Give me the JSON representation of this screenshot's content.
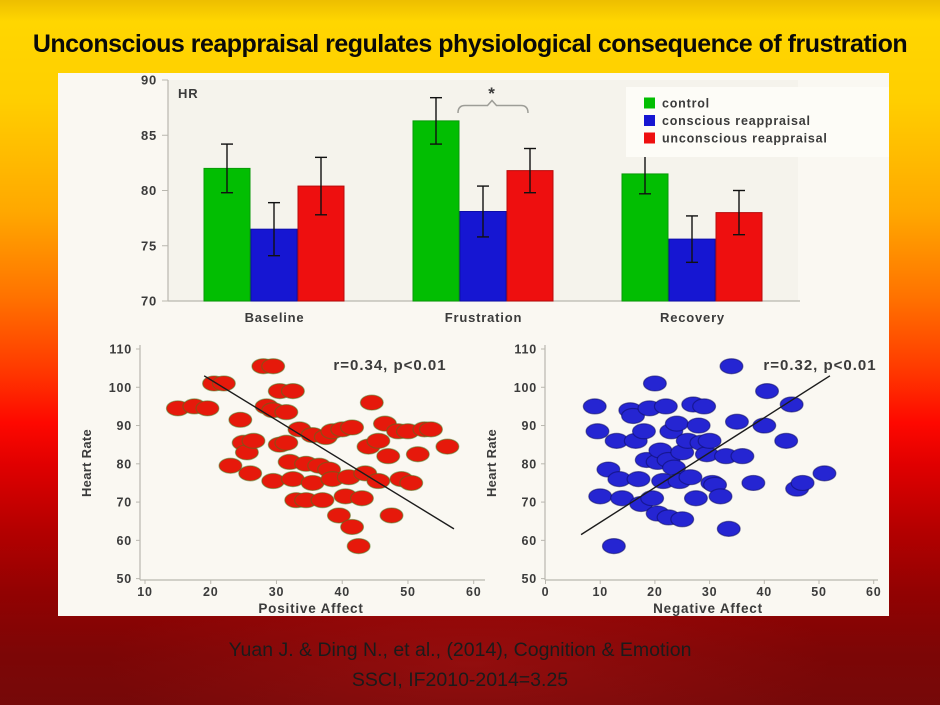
{
  "slide": {
    "title": "Unconscious reappraisal regulates physiological consequence of frustration",
    "citation": [
      "Yuan J. & Ding N., et al., (2014), Cognition & Emotion",
      "SSCI, IF2010-2014=3.25"
    ]
  },
  "colors": {
    "control_green": "#02be02",
    "conscious_blue": "#1616d2",
    "unconscious_red": "#ee0f0f",
    "scatter_red": "#e6190b",
    "scatter_blue": "#2525d2",
    "bg_top_yellow": "#ffd600",
    "bg_bottom_red": "#760909",
    "panel_white": "#faf8f2"
  },
  "chart_data": [
    {
      "type": "bar",
      "title": "HR",
      "categories": [
        "Baseline",
        "Frustration",
        "Recovery"
      ],
      "series": [
        {
          "name": "control",
          "color": "#02be02",
          "edge": "#089a08",
          "values": [
            82.0,
            86.3,
            81.5
          ],
          "errors": [
            2.2,
            2.1,
            1.8
          ]
        },
        {
          "name": "conscious reappraisal",
          "color": "#1616d2",
          "edge": "#0d0da8",
          "values": [
            76.5,
            78.1,
            75.6
          ],
          "errors": [
            2.4,
            2.3,
            2.1
          ]
        },
        {
          "name": "unconscious reappraisal",
          "color": "#ee0f0f",
          "edge": "#b80b0b",
          "values": [
            80.4,
            81.8,
            78.0
          ],
          "errors": [
            2.6,
            2.0,
            2.0
          ]
        }
      ],
      "ylim": [
        70,
        90
      ],
      "yticks": [
        70,
        75,
        80,
        85,
        90
      ],
      "grid": false,
      "legend_position": "top-right",
      "significance": {
        "label": "*",
        "category": "Frustration",
        "between": [
          "conscious reappraisal",
          "unconscious reappraisal"
        ]
      }
    },
    {
      "type": "scatter",
      "xlabel": "Positive Affect",
      "ylabel": "Heart Rate",
      "annotation": "r=0.34, p<0.01",
      "xlim": [
        10,
        60
      ],
      "ylim": [
        50,
        110
      ],
      "xticks": [
        10,
        20,
        30,
        40,
        50,
        60
      ],
      "yticks": [
        50,
        60,
        70,
        80,
        90,
        100,
        110
      ],
      "marker_color": "#e6190b",
      "trend_line": [
        [
          19,
          103
        ],
        [
          57,
          63
        ]
      ],
      "points": [
        [
          15,
          94.5
        ],
        [
          17.5,
          95
        ],
        [
          19.5,
          94.5
        ],
        [
          20.5,
          101
        ],
        [
          22,
          101
        ],
        [
          23,
          79.5
        ],
        [
          24.5,
          91.5
        ],
        [
          25,
          85.5
        ],
        [
          25.5,
          83
        ],
        [
          26.5,
          86
        ],
        [
          26,
          77.5
        ],
        [
          28,
          105.5
        ],
        [
          29.5,
          105.5
        ],
        [
          28.5,
          95
        ],
        [
          29.5,
          94
        ],
        [
          30.5,
          99
        ],
        [
          31.5,
          93.5
        ],
        [
          32.5,
          99
        ],
        [
          29.5,
          75.5
        ],
        [
          30.5,
          85
        ],
        [
          31.5,
          85.5
        ],
        [
          32,
          80.5
        ],
        [
          32.5,
          76
        ],
        [
          33,
          70.5
        ],
        [
          33.5,
          89
        ],
        [
          34.5,
          80
        ],
        [
          34.5,
          70.5
        ],
        [
          35.5,
          87.5
        ],
        [
          35.5,
          75
        ],
        [
          36.5,
          79.5
        ],
        [
          37,
          70.5
        ],
        [
          37.5,
          87
        ],
        [
          38,
          78.5
        ],
        [
          38.5,
          76
        ],
        [
          38.5,
          88.5
        ],
        [
          39.5,
          66.5
        ],
        [
          40,
          89
        ],
        [
          40.5,
          71.5
        ],
        [
          41,
          76.5
        ],
        [
          41.5,
          89.5
        ],
        [
          41.5,
          63.5
        ],
        [
          42.5,
          58.5
        ],
        [
          43,
          71
        ],
        [
          43.5,
          77.5
        ],
        [
          44,
          84.5
        ],
        [
          44.5,
          96
        ],
        [
          45.5,
          86
        ],
        [
          45.5,
          75.5
        ],
        [
          46.5,
          90.5
        ],
        [
          47,
          82
        ],
        [
          47.5,
          66.5
        ],
        [
          48.5,
          88.5
        ],
        [
          49,
          76
        ],
        [
          50,
          88.5
        ],
        [
          50.5,
          75
        ],
        [
          51.5,
          82.5
        ],
        [
          52.5,
          89
        ],
        [
          53.5,
          89
        ],
        [
          56,
          84.5
        ]
      ]
    },
    {
      "type": "scatter",
      "xlabel": "Negative Affect",
      "ylabel": "Heart Rate",
      "annotation": "r=0.32, p<0.01",
      "xlim": [
        0,
        60
      ],
      "ylim": [
        50,
        110
      ],
      "xticks": [
        0,
        10,
        20,
        30,
        40,
        50,
        60
      ],
      "yticks": [
        50,
        60,
        70,
        80,
        90,
        100,
        110
      ],
      "marker_color": "#2525d2",
      "trend_line": [
        [
          6.5,
          61.5
        ],
        [
          52,
          103
        ]
      ],
      "points": [
        [
          9,
          95
        ],
        [
          9.5,
          88.5
        ],
        [
          10,
          71.5
        ],
        [
          11.5,
          78.5
        ],
        [
          12.5,
          58.5
        ],
        [
          13,
          86
        ],
        [
          13.5,
          76
        ],
        [
          14,
          71
        ],
        [
          15.5,
          94
        ],
        [
          16,
          92.5
        ],
        [
          16.5,
          86
        ],
        [
          17,
          76
        ],
        [
          17.5,
          69.5
        ],
        [
          18,
          88.5
        ],
        [
          18.5,
          81
        ],
        [
          19,
          94.5
        ],
        [
          19.5,
          71
        ],
        [
          20,
          101
        ],
        [
          20.5,
          80.5
        ],
        [
          20.5,
          67
        ],
        [
          21,
          83.5
        ],
        [
          21.5,
          75.5
        ],
        [
          22,
          95
        ],
        [
          22.5,
          81
        ],
        [
          22.5,
          66
        ],
        [
          23,
          88.5
        ],
        [
          23.5,
          79
        ],
        [
          24,
          90.5
        ],
        [
          24.5,
          75.5
        ],
        [
          25,
          83
        ],
        [
          25,
          65.5
        ],
        [
          26,
          86
        ],
        [
          26.5,
          76.5
        ],
        [
          27,
          95.5
        ],
        [
          27.5,
          71
        ],
        [
          28,
          90
        ],
        [
          28.5,
          85.5
        ],
        [
          29,
          95
        ],
        [
          29.5,
          82.5
        ],
        [
          30,
          86
        ],
        [
          30.5,
          75
        ],
        [
          31,
          74.5
        ],
        [
          32,
          71.5
        ],
        [
          33,
          82
        ],
        [
          33.5,
          63
        ],
        [
          34,
          105.5
        ],
        [
          35,
          91
        ],
        [
          36,
          82
        ],
        [
          38,
          75
        ],
        [
          40,
          90
        ],
        [
          40.5,
          99
        ],
        [
          44,
          86
        ],
        [
          45,
          95.5
        ],
        [
          46,
          73.5
        ],
        [
          47,
          75
        ],
        [
          51,
          77.5
        ]
      ]
    }
  ]
}
